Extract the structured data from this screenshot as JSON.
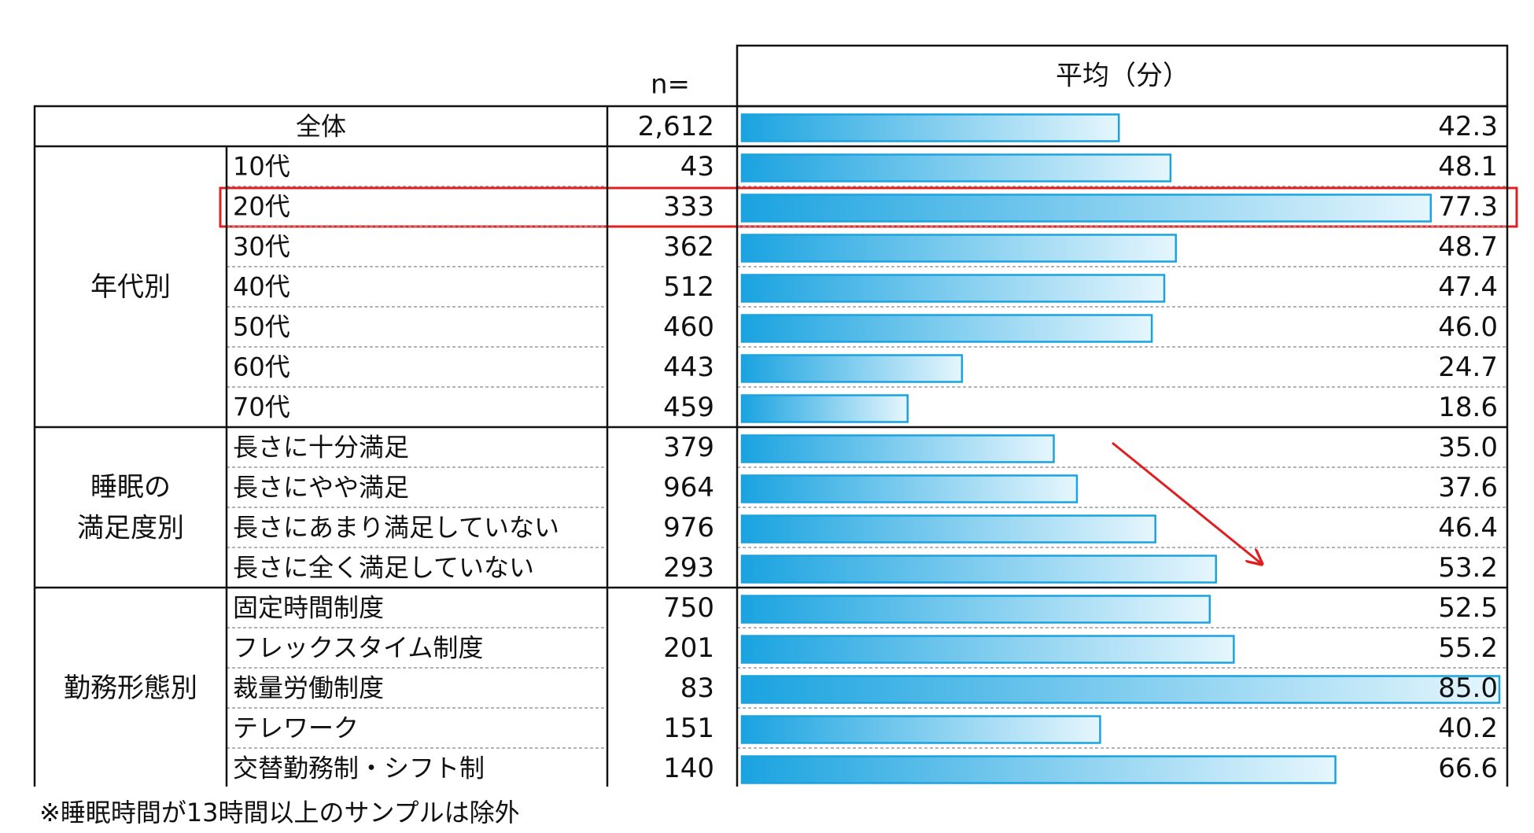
{
  "chart_data": {
    "type": "bar",
    "header": {
      "n_label": "n=",
      "value_label": "平均（分）"
    },
    "xlim": [
      0,
      85
    ],
    "total": {
      "label": "全体",
      "n": "2,612",
      "value": 42.3,
      "display": "42.3"
    },
    "groups": [
      {
        "label_lines": [
          "年代別"
        ],
        "rows": [
          {
            "label": "10代",
            "n": "43",
            "value": 48.1,
            "display": "48.1"
          },
          {
            "label": "20代",
            "n": "333",
            "value": 77.3,
            "display": "77.3",
            "highlight": true
          },
          {
            "label": "30代",
            "n": "362",
            "value": 48.7,
            "display": "48.7"
          },
          {
            "label": "40代",
            "n": "512",
            "value": 47.4,
            "display": "47.4"
          },
          {
            "label": "50代",
            "n": "460",
            "value": 46.0,
            "display": "46.0"
          },
          {
            "label": "60代",
            "n": "443",
            "value": 24.7,
            "display": "24.7"
          },
          {
            "label": "70代",
            "n": "459",
            "value": 18.6,
            "display": "18.6"
          }
        ]
      },
      {
        "label_lines": [
          "睡眠の",
          "満足度別"
        ],
        "arrow": true,
        "rows": [
          {
            "label": "長さに十分満足",
            "n": "379",
            "value": 35.0,
            "display": "35.0"
          },
          {
            "label": "長さにやや満足",
            "n": "964",
            "value": 37.6,
            "display": "37.6"
          },
          {
            "label": "長さにあまり満足していない",
            "n": "976",
            "value": 46.4,
            "display": "46.4"
          },
          {
            "label": "長さに全く満足していない",
            "n": "293",
            "value": 53.2,
            "display": "53.2"
          }
        ]
      },
      {
        "label_lines": [
          "勤務形態別"
        ],
        "rows": [
          {
            "label": "固定時間制度",
            "n": "750",
            "value": 52.5,
            "display": "52.5"
          },
          {
            "label": "フレックスタイム制度",
            "n": "201",
            "value": 55.2,
            "display": "55.2"
          },
          {
            "label": "裁量労働制度",
            "n": "83",
            "value": 85.0,
            "display": "85.0"
          },
          {
            "label": "テレワーク",
            "n": "151",
            "value": 40.2,
            "display": "40.2"
          },
          {
            "label": "交替勤務制・シフト制",
            "n": "140",
            "value": 66.6,
            "display": "66.6"
          }
        ]
      }
    ],
    "colors": {
      "bar_dark": "#1aa3e0",
      "bar_light": "#e6f6fd",
      "bar_border": "#1aa3e0",
      "highlight": "#e02020",
      "arrow": "#e02020"
    },
    "footnote": "※睡眠時間が13時間以上のサンプルは除外"
  }
}
